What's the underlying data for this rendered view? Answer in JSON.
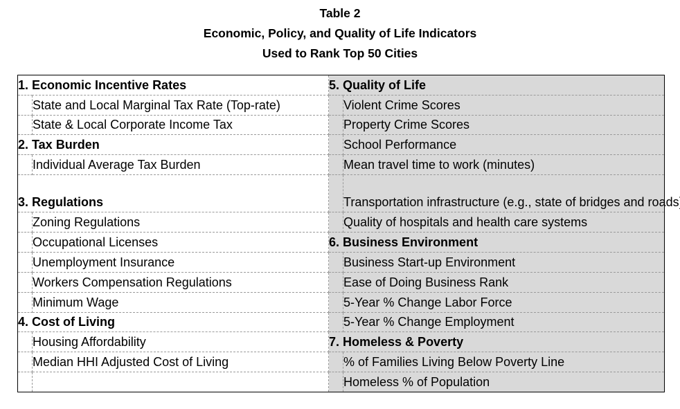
{
  "caption": {
    "line1": "Table 2",
    "line2": "Economic, Policy, and Quality of Life Indicators",
    "line3": "Used to Rank Top 50 Cities"
  },
  "rows": [
    {
      "left": {
        "type": "head",
        "text": "1. Economic Incentive Rates"
      },
      "right": {
        "type": "head",
        "text": "5. Quality of Life"
      }
    },
    {
      "left": {
        "type": "sub",
        "text": "State and Local Marginal Tax Rate (Top-rate)"
      },
      "right": {
        "type": "sub",
        "text": "Violent Crime Scores"
      }
    },
    {
      "left": {
        "type": "sub",
        "text": "State & Local Corporate Income Tax"
      },
      "right": {
        "type": "sub",
        "text": "Property Crime Scores"
      }
    },
    {
      "left": {
        "type": "head",
        "text": "2. Tax Burden"
      },
      "right": {
        "type": "sub",
        "text": "School Performance"
      }
    },
    {
      "left": {
        "type": "sub",
        "text": "Individual Average Tax Burden"
      },
      "right": {
        "type": "sub",
        "text": "Mean travel time to work (minutes)"
      }
    },
    {
      "left": {
        "type": "head",
        "text": "3. Regulations"
      },
      "right": {
        "type": "sub",
        "text": "Transportation infrastructure (e.g., state of bridges and roads)"
      }
    },
    {
      "left": {
        "type": "sub",
        "text": "Zoning Regulations"
      },
      "right": {
        "type": "sub",
        "text": "Quality of hospitals and health care systems"
      }
    },
    {
      "left": {
        "type": "sub",
        "text": "Occupational Licenses"
      },
      "right": {
        "type": "head",
        "text": "6. Business Environment"
      }
    },
    {
      "left": {
        "type": "sub",
        "text": "Unemployment Insurance"
      },
      "right": {
        "type": "sub",
        "text": "Business Start-up Environment"
      }
    },
    {
      "left": {
        "type": "sub",
        "text": "Workers Compensation Regulations"
      },
      "right": {
        "type": "sub",
        "text": "Ease of Doing Business Rank"
      }
    },
    {
      "left": {
        "type": "sub",
        "text": "Minimum Wage"
      },
      "right": {
        "type": "sub",
        "text": "5-Year % Change Labor Force"
      }
    },
    {
      "left": {
        "type": "head",
        "text": "4. Cost of Living"
      },
      "right": {
        "type": "sub",
        "text": "5-Year % Change Employment"
      }
    },
    {
      "left": {
        "type": "sub",
        "text": "Housing Affordability"
      },
      "right": {
        "type": "head",
        "text": "7. Homeless & Poverty"
      }
    },
    {
      "left": {
        "type": "sub",
        "text": "Median HHI Adjusted Cost of Living"
      },
      "right": {
        "type": "sub",
        "text": "% of Families Living Below Poverty Line"
      }
    },
    {
      "left": {
        "type": "sub",
        "text": ""
      },
      "right": {
        "type": "sub",
        "text": "Homeless % of Population"
      }
    }
  ],
  "colors": {
    "right_column_bg": "#d9d9d9",
    "grid_line": "#9a9a9a"
  }
}
